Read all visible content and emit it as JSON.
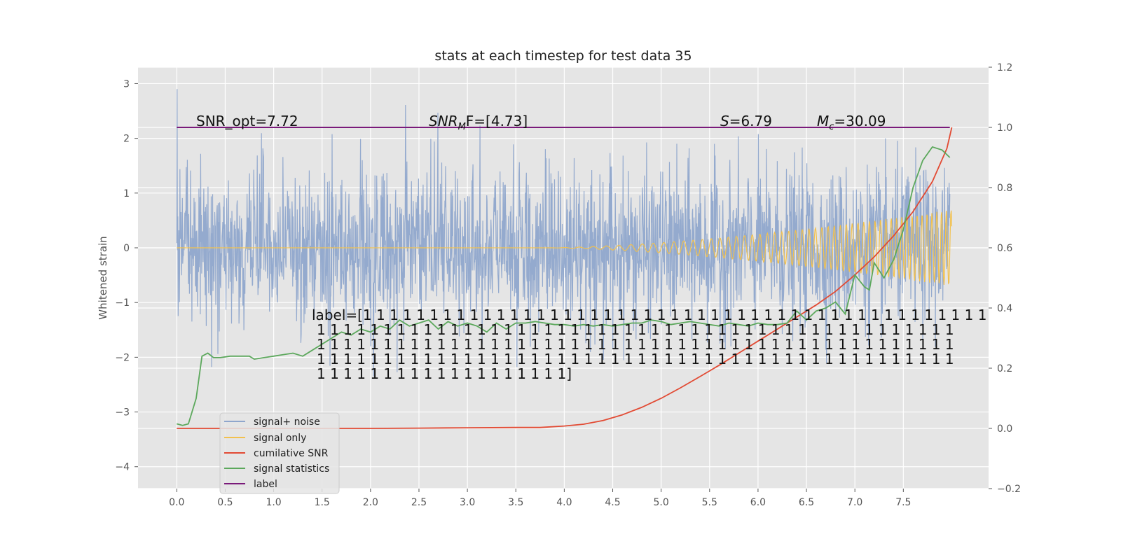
{
  "chart_data": {
    "type": "line",
    "title": "stats at each timestep for test data 35",
    "xlabel": "",
    "ylabel": "Whitened strain",
    "ylabel_right": "",
    "xlim": [
      -0.4,
      8.38
    ],
    "ylim": [
      -4.4,
      3.3
    ],
    "ylim_right": [
      -0.2,
      1.2
    ],
    "x_ticks": [
      "0.0",
      "0.5",
      "1.0",
      "1.5",
      "2.0",
      "2.5",
      "3.0",
      "3.5",
      "4.0",
      "4.5",
      "5.0",
      "5.5",
      "6.0",
      "6.5",
      "7.0",
      "7.5"
    ],
    "y_ticks": [
      "−4",
      "−3",
      "−2",
      "−1",
      "0",
      "1",
      "2",
      "3"
    ],
    "y_ticks_right": [
      "−0.2",
      "0.0",
      "0.2",
      "0.4",
      "0.6",
      "0.8",
      "1.0",
      "1.2"
    ],
    "grid": true,
    "legend_position": "bottom-left",
    "annotations": {
      "snr_opt": "SNR_opt=7.72",
      "snr_mf": "SNR",
      "snr_mf_sub": "M",
      "snr_mf_rest": "F=[4.73]",
      "s_var": "S",
      "s_value": "=6.79",
      "mc_var": "M",
      "mc_sub": "c",
      "mc_value": "=30.09",
      "label_lines": [
        "label=[1 1 1 1 1 1 1 1 1 1 1 1 1 1 1 1 1 1 1 1 1 1 1 1 1 1 1 1 1 1 1 1 1 1 1 1 1 1 1 1 1 1 1 1 1 1 1",
        "1 1 1 1 1 1 1 1 1 1 1 1 1 1 1 1 1 1 1 1 1 1 1 1 1 1 1 1 1 1 1 1 1 1 1 1 1 1 1 1 1 1 1 1 1 1 1 1",
        "1 1 1 1 1 1 1 1 1 1 1 1 1 1 1 1 1 1 1 1 1 1 1 1 1 1 1 1 1 1 1 1 1 1 1 1 1 1 1 1 1 1 1 1 1 1 1 1",
        "1 1 1 1 1 1 1 1 1 1 1 1 1 1 1 1 1 1 1 1 1 1 1 1 1 1 1 1 1 1 1 1 1 1 1 1 1 1 1 1 1 1 1 1 1 1 1 1",
        "1 1 1 1 1 1 1 1 1 1 1 1 1 1 1 1 1 1 1]"
      ]
    },
    "series": [
      {
        "name": "signal+ noise",
        "axis": "left",
        "color": "#8fa6cc",
        "description_note": "noise trace, approx amplitude ±1.3 with spikes to ±3"
      },
      {
        "name": "signal only",
        "axis": "left",
        "color": "#f2c14e",
        "chirp": {
          "start": 3.8,
          "end": 8.0,
          "max_amplitude": 0.7
        }
      },
      {
        "name": "cumilative SNR",
        "axis": "right",
        "color": "#e24a33",
        "x": [
          0.0,
          0.5,
          1.0,
          1.5,
          2.0,
          2.5,
          3.0,
          3.5,
          3.75,
          4.0,
          4.2,
          4.4,
          4.6,
          4.8,
          5.0,
          5.2,
          5.4,
          5.6,
          5.8,
          6.0,
          6.2,
          6.4,
          6.6,
          6.8,
          7.0,
          7.2,
          7.4,
          7.6,
          7.8,
          7.95,
          8.0
        ],
        "y": [
          0.0,
          0.0,
          0.0,
          0.0,
          0.0,
          0.001,
          0.002,
          0.003,
          0.003,
          0.008,
          0.014,
          0.026,
          0.045,
          0.07,
          0.1,
          0.135,
          0.172,
          0.21,
          0.25,
          0.29,
          0.33,
          0.37,
          0.41,
          0.455,
          0.51,
          0.57,
          0.64,
          0.72,
          0.82,
          0.93,
          1.0
        ]
      },
      {
        "name": "signal statistics",
        "axis": "right",
        "color": "#5ca85c",
        "x": [
          0.0,
          0.06,
          0.12,
          0.2,
          0.26,
          0.32,
          0.38,
          0.45,
          0.55,
          0.65,
          0.75,
          0.8,
          0.9,
          1.0,
          1.1,
          1.2,
          1.3,
          1.4,
          1.5,
          1.6,
          1.7,
          1.8,
          1.9,
          2.0,
          2.1,
          2.2,
          2.3,
          2.4,
          2.5,
          2.6,
          2.7,
          2.8,
          2.9,
          3.0,
          3.1,
          3.2,
          3.3,
          3.4,
          3.5,
          3.6,
          3.7,
          3.8,
          3.9,
          4.0,
          4.1,
          4.2,
          4.3,
          4.4,
          4.5,
          4.6,
          4.7,
          4.8,
          4.9,
          5.0,
          5.1,
          5.2,
          5.3,
          5.4,
          5.5,
          5.6,
          5.7,
          5.8,
          5.9,
          6.0,
          6.1,
          6.2,
          6.3,
          6.4,
          6.5,
          6.6,
          6.7,
          6.8,
          6.9,
          7.0,
          7.1,
          7.15,
          7.2,
          7.3,
          7.4,
          7.5,
          7.6,
          7.7,
          7.8,
          7.9,
          7.98
        ],
        "y": [
          0.015,
          0.01,
          0.015,
          0.1,
          0.24,
          0.25,
          0.235,
          0.235,
          0.24,
          0.24,
          0.24,
          0.23,
          0.235,
          0.24,
          0.245,
          0.25,
          0.24,
          0.26,
          0.28,
          0.3,
          0.32,
          0.31,
          0.33,
          0.32,
          0.34,
          0.33,
          0.36,
          0.34,
          0.35,
          0.36,
          0.33,
          0.355,
          0.34,
          0.35,
          0.34,
          0.32,
          0.35,
          0.33,
          0.35,
          0.35,
          0.355,
          0.35,
          0.345,
          0.345,
          0.34,
          0.345,
          0.34,
          0.345,
          0.34,
          0.345,
          0.35,
          0.35,
          0.36,
          0.355,
          0.345,
          0.35,
          0.355,
          0.35,
          0.345,
          0.34,
          0.35,
          0.345,
          0.34,
          0.35,
          0.345,
          0.345,
          0.35,
          0.39,
          0.36,
          0.39,
          0.4,
          0.42,
          0.38,
          0.51,
          0.47,
          0.46,
          0.55,
          0.5,
          0.56,
          0.66,
          0.8,
          0.89,
          0.935,
          0.925,
          0.9
        ]
      },
      {
        "name": "label",
        "axis": "right",
        "color": "#7a1a7a",
        "x": [
          0.0,
          7.98
        ],
        "y": [
          1.0,
          1.0
        ]
      }
    ]
  }
}
